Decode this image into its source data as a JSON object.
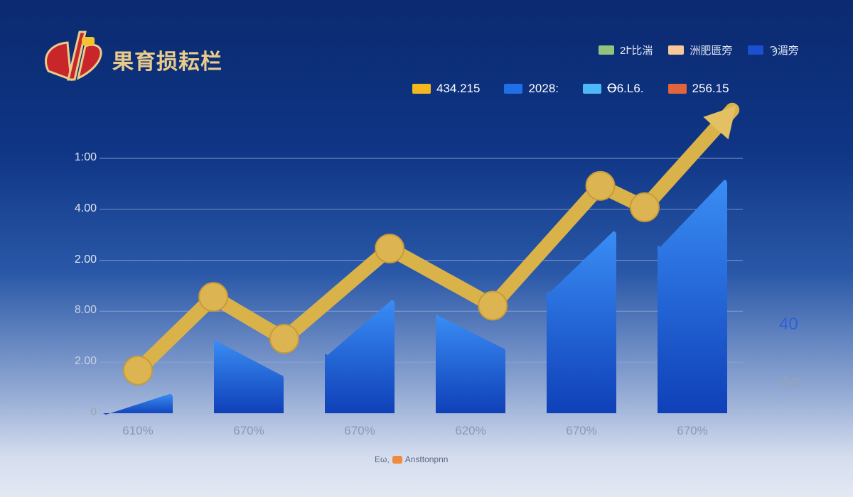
{
  "header": {
    "title": "果育损耘栏"
  },
  "colors": {
    "line": "#d9b24a",
    "bar_top": "#3a8df5",
    "bar_bottom": "#0f40b8",
    "grid": "#8fa6d6"
  },
  "chart_data": {
    "type": "bar",
    "title": "果育损耘栏",
    "legend_top": [
      {
        "label": "2Ւ比湍",
        "color": "#93c47d"
      },
      {
        "label": "洲肥匮旁",
        "color": "#f6c89a"
      },
      {
        "label": "Ϡ湄旁",
        "color": "#1a4fd0"
      }
    ],
    "legend_values": [
      {
        "label": "434.215",
        "color": "#f2b81d"
      },
      {
        "label": "2028:",
        "color": "#1f6fe6"
      },
      {
        "label": "Ꝋ6.L6.",
        "color": "#4db8f5"
      },
      {
        "label": "256.15",
        "color": "#e0643c"
      }
    ],
    "y_ticks": [
      "0",
      "2.00",
      "8.00",
      "2.00",
      "4.00",
      "1:00"
    ],
    "categories": [
      "610%",
      "670%",
      "670%",
      "620%",
      "670%",
      "670%"
    ],
    "bars": [
      {
        "left": 0,
        "right": 0.38
      },
      {
        "left": 1.44,
        "right": 0.75
      },
      {
        "left": 1.17,
        "right": 2.22
      },
      {
        "left": 1.94,
        "right": 1.28
      },
      {
        "left": 2.39,
        "right": 3.57
      },
      {
        "left": 3.29,
        "right": 4.58
      }
    ],
    "trend_line": {
      "x": [
        0,
        0.68,
        1.32,
        2.27,
        3.2,
        4.17,
        4.57,
        5.36
      ],
      "y": [
        0.84,
        2.28,
        1.46,
        3.23,
        2.11,
        4.46,
        4.04,
        5.95
      ],
      "arrow_end": true
    },
    "right_labels": [
      "40",
      "ÖD"
    ],
    "grid": true,
    "legend_placement": "top-right",
    "footer": {
      "left": "Eω,",
      "right": "Ansttonpnn"
    }
  }
}
